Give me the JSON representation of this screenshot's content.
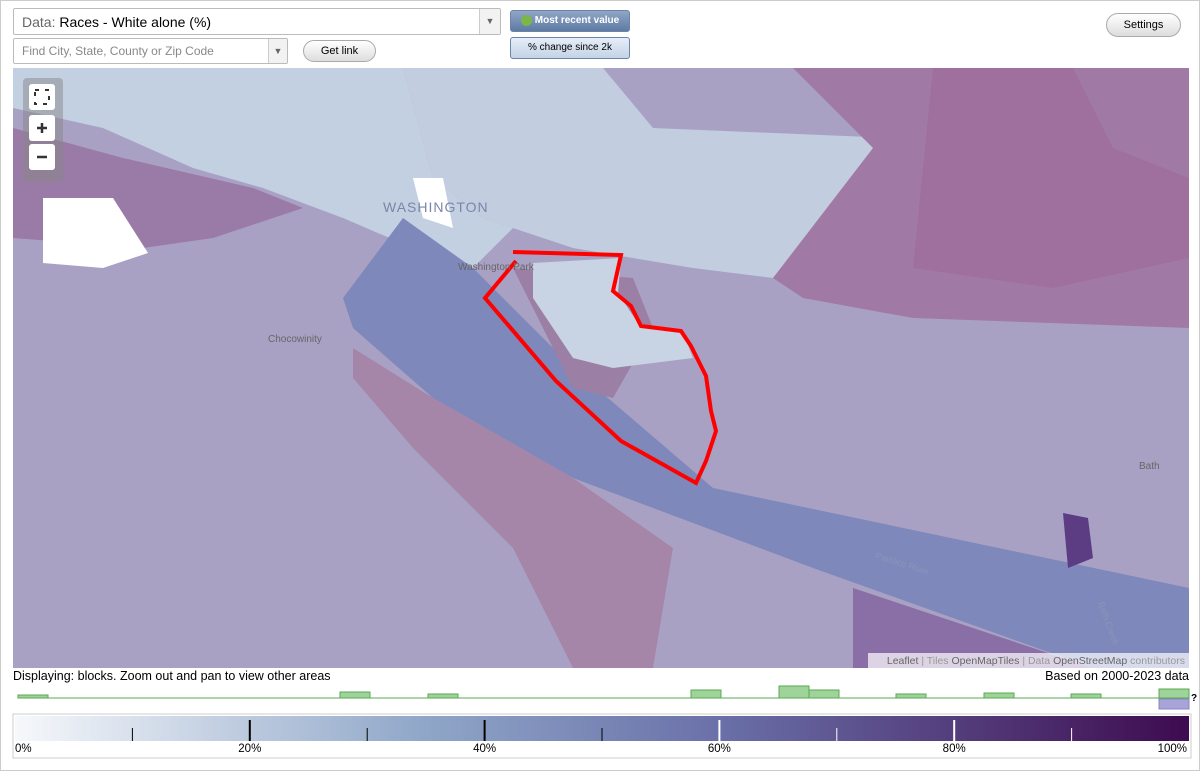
{
  "controls": {
    "data_label": "Data:",
    "data_value": "Races - White alone (%)",
    "search_placeholder": "Find City, State, County or Zip Code",
    "get_link": "Get link",
    "most_recent": "Most recent value",
    "change": "% change since 2k",
    "settings": "Settings"
  },
  "map": {
    "labels": [
      "WASHINGTON",
      "Washington Park",
      "Chocowinity",
      "Bath",
      "Pamlico River",
      "Bath Creek"
    ],
    "attribution": {
      "leaflet": "Leaflet",
      "sep1": "|",
      "tiles_label": "Tiles",
      "tiles": "OpenMapTiles",
      "sep2": "|",
      "data_label": "Data",
      "data": "OpenStreetMap",
      "contributors": "contributors"
    }
  },
  "status": {
    "displaying": "Displaying: blocks. Zoom out and pan to view other areas",
    "based_on": "Based on 2000-2023 data"
  },
  "histogram": {
    "unknown": "?"
  },
  "legend": {
    "labels": [
      "0%",
      "20%",
      "40%",
      "60%",
      "80%",
      "100%"
    ]
  }
}
